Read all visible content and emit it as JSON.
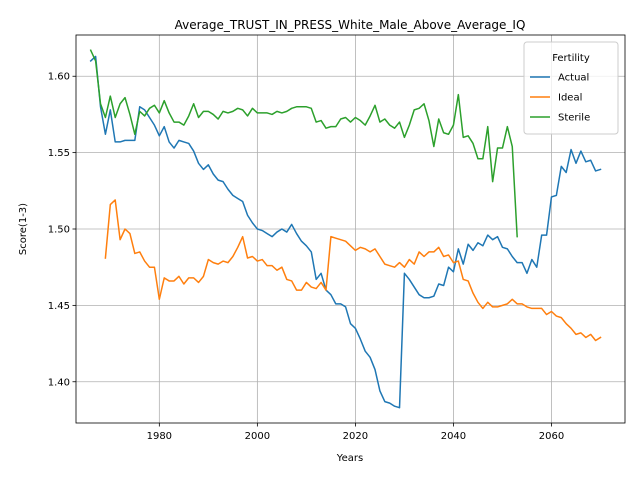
{
  "chart_data": {
    "type": "line",
    "title": "Average_TRUST_IN_PRESS_White_Male_Above_Average_IQ",
    "xlabel": "Years",
    "ylabel": "Score(1-3)",
    "xlim": [
      1963,
      2075
    ],
    "ylim": [
      1.373,
      1.627
    ],
    "xticks": [
      1980,
      2000,
      2020,
      2040,
      2060
    ],
    "xtick_labels": [
      "1980",
      "2000",
      "2020",
      "2040",
      "2060"
    ],
    "yticks": [
      1.4,
      1.45,
      1.5,
      1.55,
      1.6
    ],
    "ytick_labels": [
      "1.40",
      "1.45",
      "1.50",
      "1.55",
      "1.60"
    ],
    "grid": true,
    "legend": {
      "title": "Fertility",
      "position": "top-right"
    },
    "series": [
      {
        "name": "Actual",
        "color": "#1f77b4",
        "x": [
          1966,
          1967,
          1968,
          1969,
          1970,
          1971,
          1972,
          1973,
          1974,
          1975,
          1976,
          1977,
          1978,
          1979,
          1980,
          1981,
          1982,
          1983,
          1984,
          1985,
          1986,
          1987,
          1988,
          1989,
          1990,
          1991,
          1992,
          1993,
          1994,
          1995,
          1996,
          1997,
          1998,
          1999,
          2000,
          2001,
          2002,
          2003,
          2004,
          2005,
          2006,
          2007,
          2008,
          2009,
          2010,
          2011,
          2012,
          2013,
          2014,
          2015,
          2016,
          2017,
          2018,
          2019,
          2020,
          2021,
          2022,
          2023,
          2024,
          2025,
          2026,
          2027,
          2028,
          2029,
          2030,
          2031,
          2032,
          2033,
          2034,
          2035,
          2036,
          2037,
          2038,
          2039,
          2040,
          2041,
          2042,
          2043,
          2044,
          2045,
          2046,
          2047,
          2048,
          2049,
          2050,
          2051,
          2052,
          2053,
          2054,
          2055,
          2056,
          2057,
          2058,
          2059,
          2060,
          2061,
          2062,
          2063,
          2064,
          2065,
          2066,
          2067,
          2068,
          2069,
          2070
        ],
        "y": [
          1.61,
          1.613,
          1.58,
          1.562,
          1.578,
          1.557,
          1.557,
          1.558,
          1.558,
          1.558,
          1.58,
          1.578,
          1.573,
          1.568,
          1.561,
          1.567,
          1.557,
          1.553,
          1.558,
          1.557,
          1.556,
          1.551,
          1.543,
          1.539,
          1.542,
          1.536,
          1.532,
          1.531,
          1.526,
          1.522,
          1.52,
          1.518,
          1.509,
          1.504,
          1.5,
          1.499,
          1.497,
          1.495,
          1.498,
          1.5,
          1.498,
          1.503,
          1.497,
          1.492,
          1.489,
          1.485,
          1.467,
          1.471,
          1.46,
          1.457,
          1.451,
          1.451,
          1.449,
          1.438,
          1.435,
          1.428,
          1.42,
          1.416,
          1.408,
          1.394,
          1.387,
          1.386,
          1.384,
          1.383,
          1.471,
          1.467,
          1.462,
          1.457,
          1.455,
          1.455,
          1.456,
          1.464,
          1.463,
          1.475,
          1.472,
          1.487,
          1.477,
          1.49,
          1.486,
          1.491,
          1.489,
          1.496,
          1.493,
          1.495,
          1.488,
          1.487,
          1.482,
          1.478,
          1.478,
          1.471,
          1.48,
          1.475,
          1.496,
          1.496,
          1.521,
          1.522,
          1.541,
          1.537,
          1.552,
          1.543,
          1.551,
          1.544,
          1.545,
          1.538,
          1.539
        ]
      },
      {
        "name": "Ideal",
        "color": "#ff7f0e",
        "x": [
          1969,
          1970,
          1971,
          1972,
          1973,
          1974,
          1975,
          1976,
          1977,
          1978,
          1979,
          1980,
          1981,
          1982,
          1983,
          1984,
          1985,
          1986,
          1987,
          1988,
          1989,
          1990,
          1991,
          1992,
          1993,
          1994,
          1995,
          1996,
          1997,
          1998,
          1999,
          2000,
          2001,
          2002,
          2003,
          2004,
          2005,
          2006,
          2007,
          2008,
          2009,
          2010,
          2011,
          2012,
          2013,
          2014,
          2015,
          2016,
          2017,
          2018,
          2019,
          2020,
          2021,
          2022,
          2023,
          2024,
          2025,
          2026,
          2027,
          2028,
          2029,
          2030,
          2031,
          2032,
          2033,
          2034,
          2035,
          2036,
          2037,
          2038,
          2039,
          2040,
          2041,
          2042,
          2043,
          2044,
          2045,
          2046,
          2047,
          2048,
          2049,
          2050,
          2051,
          2052,
          2053,
          2054,
          2055,
          2056,
          2057,
          2058,
          2059,
          2060,
          2061,
          2062,
          2063,
          2064,
          2065,
          2066,
          2067,
          2068,
          2069,
          2070
        ],
        "y": [
          1.481,
          1.516,
          1.519,
          1.493,
          1.5,
          1.497,
          1.484,
          1.485,
          1.479,
          1.475,
          1.475,
          1.454,
          1.468,
          1.466,
          1.466,
          1.469,
          1.464,
          1.468,
          1.468,
          1.465,
          1.469,
          1.48,
          1.478,
          1.477,
          1.479,
          1.478,
          1.482,
          1.488,
          1.495,
          1.481,
          1.482,
          1.479,
          1.48,
          1.476,
          1.476,
          1.473,
          1.475,
          1.467,
          1.466,
          1.46,
          1.46,
          1.465,
          1.462,
          1.461,
          1.465,
          1.46,
          1.495,
          1.494,
          1.493,
          1.492,
          1.489,
          1.486,
          1.488,
          1.487,
          1.485,
          1.487,
          1.482,
          1.477,
          1.476,
          1.475,
          1.478,
          1.475,
          1.48,
          1.477,
          1.485,
          1.482,
          1.485,
          1.485,
          1.488,
          1.482,
          1.483,
          1.478,
          1.479,
          1.467,
          1.466,
          1.458,
          1.452,
          1.448,
          1.452,
          1.449,
          1.449,
          1.45,
          1.451,
          1.454,
          1.451,
          1.451,
          1.449,
          1.448,
          1.448,
          1.448,
          1.444,
          1.446,
          1.443,
          1.442,
          1.438,
          1.435,
          1.431,
          1.432,
          1.429,
          1.431,
          1.427,
          1.429
        ]
      },
      {
        "name": "Sterile",
        "color": "#2ca02c",
        "x": [
          1966,
          1967,
          1968,
          1969,
          1970,
          1971,
          1972,
          1973,
          1974,
          1975,
          1976,
          1977,
          1978,
          1979,
          1980,
          1981,
          1982,
          1983,
          1984,
          1985,
          1986,
          1987,
          1988,
          1989,
          1990,
          1991,
          1992,
          1993,
          1994,
          1995,
          1996,
          1997,
          1998,
          1999,
          2000,
          2001,
          2002,
          2003,
          2004,
          2005,
          2006,
          2007,
          2008,
          2009,
          2010,
          2011,
          2012,
          2013,
          2014,
          2015,
          2016,
          2017,
          2018,
          2019,
          2020,
          2021,
          2022,
          2023,
          2024,
          2025,
          2026,
          2027,
          2028,
          2029,
          2030,
          2031,
          2032,
          2033,
          2034,
          2035,
          2036,
          2037,
          2038,
          2039,
          2040,
          2041,
          2042,
          2043,
          2044,
          2045,
          2046,
          2047,
          2048,
          2049,
          2050,
          2051,
          2052,
          2053
        ],
        "y": [
          1.617,
          1.61,
          1.582,
          1.573,
          1.587,
          1.573,
          1.582,
          1.586,
          1.575,
          1.562,
          1.577,
          1.574,
          1.579,
          1.581,
          1.576,
          1.584,
          1.576,
          1.57,
          1.57,
          1.568,
          1.574,
          1.582,
          1.573,
          1.577,
          1.577,
          1.575,
          1.572,
          1.577,
          1.576,
          1.577,
          1.579,
          1.578,
          1.574,
          1.579,
          1.576,
          1.576,
          1.576,
          1.575,
          1.577,
          1.576,
          1.577,
          1.579,
          1.58,
          1.58,
          1.58,
          1.579,
          1.57,
          1.571,
          1.566,
          1.567,
          1.567,
          1.572,
          1.573,
          1.57,
          1.573,
          1.571,
          1.568,
          1.574,
          1.581,
          1.57,
          1.572,
          1.568,
          1.566,
          1.57,
          1.56,
          1.568,
          1.578,
          1.579,
          1.582,
          1.571,
          1.554,
          1.572,
          1.563,
          1.562,
          1.568,
          1.588,
          1.56,
          1.561,
          1.556,
          1.546,
          1.546,
          1.567,
          1.531,
          1.553,
          1.553,
          1.567,
          1.554,
          1.495
        ]
      }
    ]
  }
}
